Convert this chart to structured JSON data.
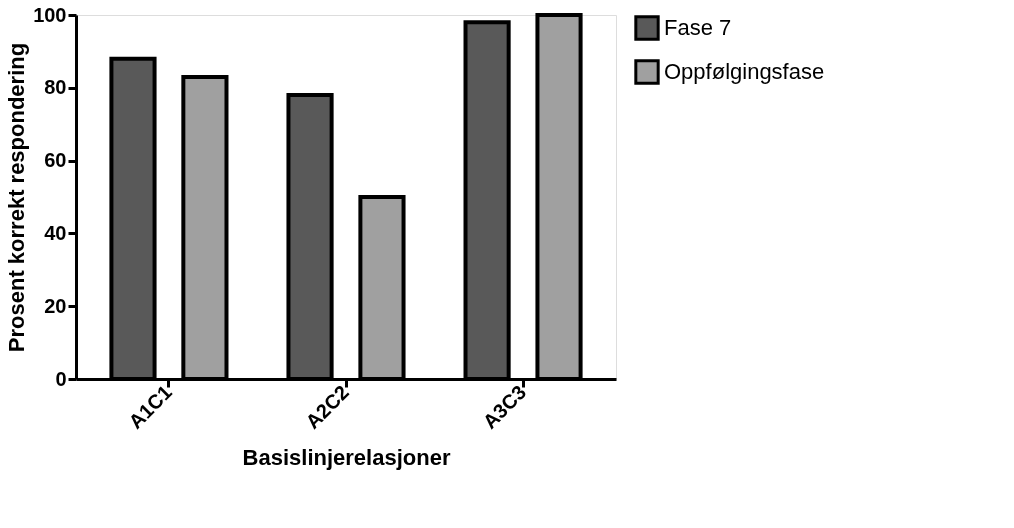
{
  "chart_data": {
    "type": "bar",
    "xlabel": "Basislinjerelasjoner",
    "ylabel": "Prosent korrekt respondering",
    "categories": [
      "A1C1",
      "A2C2",
      "A3C3"
    ],
    "series": [
      {
        "name": "Fase 7",
        "color": "#595959",
        "values": [
          88,
          78,
          98
        ]
      },
      {
        "name": "Oppfølgingsfase",
        "color": "#a0a0a0",
        "values": [
          83,
          50,
          100
        ]
      }
    ],
    "ylim": [
      0,
      100
    ],
    "yticks": [
      0,
      20,
      40,
      60,
      80,
      100
    ],
    "grid": false,
    "legend": "right"
  }
}
